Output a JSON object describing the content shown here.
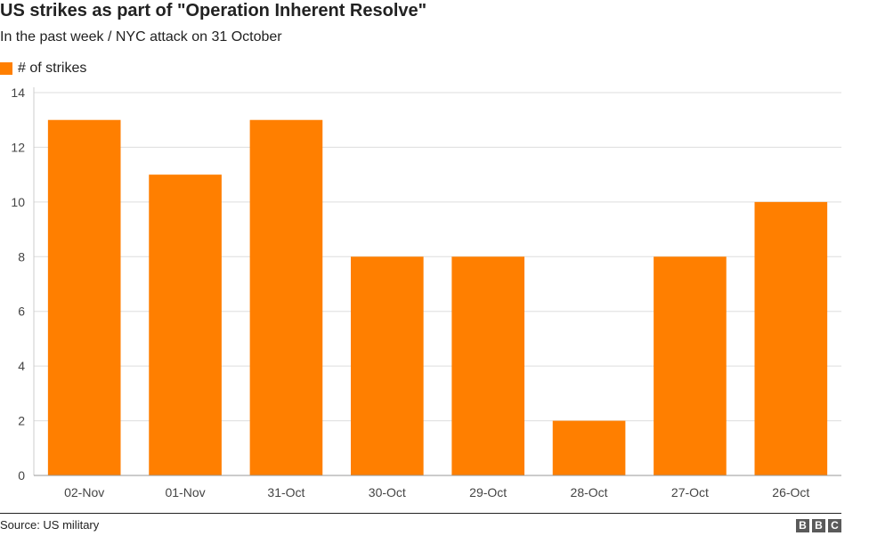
{
  "chart_data": {
    "type": "bar",
    "title": "US strikes as part of \"Operation Inherent Resolve\"",
    "subtitle": "In the past week / NYC attack on 31 October",
    "categories": [
      "02-Nov",
      "01-Nov",
      "31-Oct",
      "30-Oct",
      "29-Oct",
      "28-Oct",
      "27-Oct",
      "26-Oct"
    ],
    "series": [
      {
        "name": "# of strikes",
        "values": [
          13,
          11,
          13,
          8,
          8,
          2,
          8,
          10
        ],
        "color": "#ff7f00"
      }
    ],
    "ylim": [
      0,
      14
    ],
    "yticks": [
      0,
      2,
      4,
      6,
      8,
      10,
      12,
      14
    ],
    "grid": true,
    "legend": "top-left"
  },
  "footer": {
    "source": "Source: US military",
    "logo_letters": [
      "B",
      "B",
      "C"
    ]
  }
}
